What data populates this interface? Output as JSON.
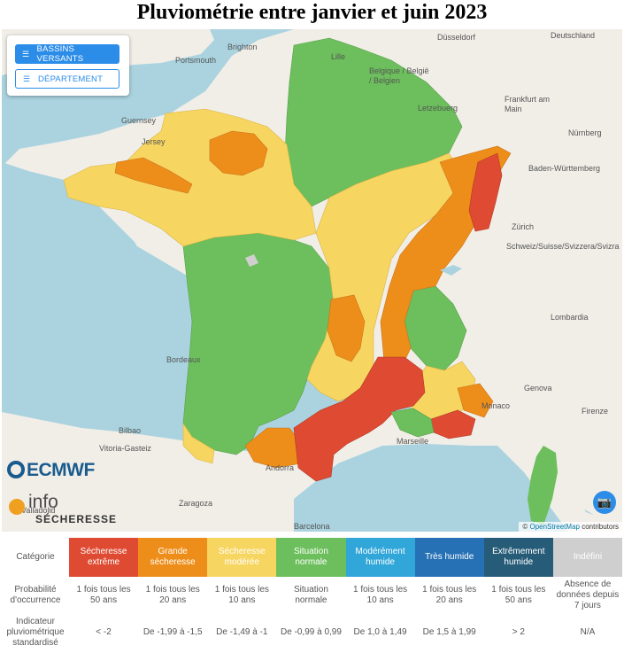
{
  "title": "Pluviométrie entre janvier et juin 2023",
  "map_controls": {
    "bassins_label": "BASSINS VERSANTS",
    "departement_label": "DÉPARTEMENT",
    "camera_icon": "camera-icon",
    "list_icon": "list-icon"
  },
  "logos": {
    "ecmwf": "ECMWF",
    "info": "info",
    "secheresse": "SÉCHERESSE"
  },
  "attribution": {
    "prefix": "©",
    "link": "OpenStreetMap",
    "suffix": "contributors"
  },
  "place_names": [
    "Düsseldorf",
    "Deutschland",
    "Lille",
    "Belgique / België / Belgien",
    "Letzebuerg",
    "Frankfurt am Main",
    "Nürnberg",
    "Guernsey",
    "Jersey",
    "Portsmouth",
    "Brighton",
    "Baden-Württemberg",
    "Zürich",
    "Schweiz/Suisse/Svizzera/Svizra",
    "Lombardia",
    "Genova",
    "Firenze",
    "Bordeaux",
    "Marseille",
    "Bilbao",
    "Vitoria-Gasteiz",
    "Zaragoza",
    "Barcelona",
    "Valladolid",
    "Andorra",
    "Monaco"
  ],
  "colors": {
    "extreme": "#de4b32",
    "grande": "#ee8e1a",
    "moderee": "#f7d561",
    "normale": "#6cbf5c",
    "mod_humide": "#31a6d9",
    "tres_humide": "#2671b5",
    "ext_humide": "#275c78",
    "indefini": "#cfcfcf"
  },
  "legend": {
    "row_labels": {
      "categorie": "Catégorie",
      "probabilite": "Probabilité d'occurrence",
      "indicateur": "Indicateur pluviométrique standardisé"
    },
    "categories": [
      {
        "name": "Sécheresse extrême",
        "color": "#de4b32",
        "probabilite": "1 fois tous les 50 ans",
        "indicateur": "< -2"
      },
      {
        "name": "Grande sécheresse",
        "color": "#ee8e1a",
        "probabilite": "1 fois tous les 20 ans",
        "indicateur": "De -1,99 à -1,5"
      },
      {
        "name": "Sécheresse modérée",
        "color": "#f7d561",
        "probabilite": "1 fois tous les 10 ans",
        "indicateur": "De -1,49 à -1"
      },
      {
        "name": "Situation normale",
        "color": "#6cbf5c",
        "probabilite": "Situation normale",
        "indicateur": "De -0,99 à 0,99"
      },
      {
        "name": "Modérément humide",
        "color": "#31a6d9",
        "probabilite": "1 fois tous les 10 ans",
        "indicateur": "De 1,0 à 1,49"
      },
      {
        "name": "Très humide",
        "color": "#2671b5",
        "probabilite": "1 fois tous les 20 ans",
        "indicateur": "De 1,5 à 1,99"
      },
      {
        "name": "Extrêmement humide",
        "color": "#275c78",
        "probabilite": "1 fois tous les 50 ans",
        "indicateur": "> 2"
      },
      {
        "name": "Indéfini",
        "color": "#cfcfcf",
        "probabilite": "Absence de données depuis 7 jours",
        "indicateur": "N/A"
      }
    ]
  }
}
